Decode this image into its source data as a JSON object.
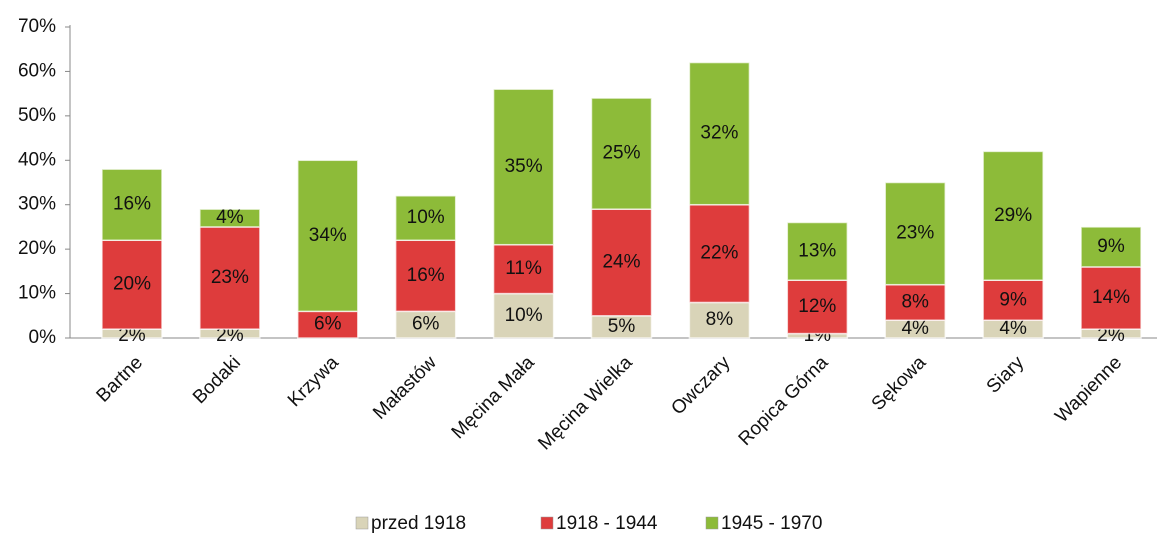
{
  "chart_data": {
    "type": "stacked_bar",
    "categories": [
      "Bartne",
      "Bodaki",
      "Krzywa",
      "Małastów",
      "Męcina Mała",
      "Męcina Wielka",
      "Owczary",
      "Ropica Górna",
      "Sękowa",
      "Siary",
      "Wapienne"
    ],
    "series": [
      {
        "name": "przed 1918",
        "color": "#d9d4b8",
        "values": [
          2,
          2,
          0,
          6,
          10,
          5,
          8,
          1,
          4,
          4,
          2
        ],
        "value_labels": [
          "2%",
          "2%",
          null,
          "6%",
          "10%",
          "5%",
          "8%",
          "1%",
          "4%",
          "4%",
          "2%"
        ]
      },
      {
        "name": "1918 - 1944",
        "color": "#de3c3c",
        "values": [
          20,
          23,
          6,
          16,
          11,
          24,
          22,
          12,
          8,
          9,
          14
        ],
        "value_labels": [
          "20%",
          "23%",
          "6%",
          "16%",
          "11%",
          "24%",
          "22%",
          "12%",
          "8%",
          "9%",
          "14%"
        ]
      },
      {
        "name": "1945 - 1970",
        "color": "#8dbb39",
        "values": [
          16,
          4,
          34,
          10,
          35,
          25,
          32,
          13,
          23,
          29,
          9
        ],
        "value_labels": [
          "16%",
          "4%",
          "34%",
          "10%",
          "35%",
          "25%",
          "32%",
          "13%",
          "23%",
          "29%",
          "9%"
        ]
      }
    ],
    "ylim": [
      0,
      70
    ],
    "yticks": [
      {
        "value": 0,
        "label": "0%"
      },
      {
        "value": 10,
        "label": "10%"
      },
      {
        "value": 20,
        "label": "20%"
      },
      {
        "value": 30,
        "label": "30%"
      },
      {
        "value": 40,
        "label": "40%"
      },
      {
        "value": 50,
        "label": "50%"
      },
      {
        "value": 60,
        "label": "60%"
      },
      {
        "value": 70,
        "label": "70%"
      }
    ],
    "legend": "bottom"
  }
}
